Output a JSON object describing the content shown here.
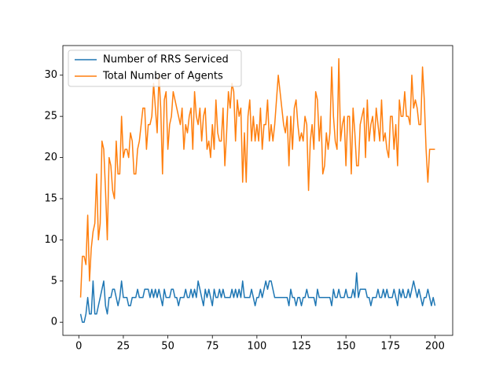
{
  "chart_data": {
    "type": "line",
    "x": [
      1,
      2,
      3,
      4,
      5,
      6,
      7,
      8,
      9,
      10,
      11,
      12,
      13,
      14,
      15,
      16,
      17,
      18,
      19,
      20,
      21,
      22,
      23,
      24,
      25,
      26,
      27,
      28,
      29,
      30,
      31,
      32,
      33,
      34,
      35,
      36,
      37,
      38,
      39,
      40,
      41,
      42,
      43,
      44,
      45,
      46,
      47,
      48,
      49,
      50,
      51,
      52,
      53,
      54,
      55,
      56,
      57,
      58,
      59,
      60,
      61,
      62,
      63,
      64,
      65,
      66,
      67,
      68,
      69,
      70,
      71,
      72,
      73,
      74,
      75,
      76,
      77,
      78,
      79,
      80,
      81,
      82,
      83,
      84,
      85,
      86,
      87,
      88,
      89,
      90,
      91,
      92,
      93,
      94,
      95,
      96,
      97,
      98,
      99,
      100,
      101,
      102,
      103,
      104,
      105,
      106,
      107,
      108,
      109,
      110,
      111,
      112,
      113,
      114,
      115,
      116,
      117,
      118,
      119,
      120,
      121,
      122,
      123,
      124,
      125,
      126,
      127,
      128,
      129,
      130,
      131,
      132,
      133,
      134,
      135,
      136,
      137,
      138,
      139,
      140,
      141,
      142,
      143,
      144,
      145,
      146,
      147,
      148,
      149,
      150,
      151,
      152,
      153,
      154,
      155,
      156,
      157,
      158,
      159,
      160,
      161,
      162,
      163,
      164,
      165,
      166,
      167,
      168,
      169,
      170,
      171,
      172,
      173,
      174,
      175,
      176,
      177,
      178,
      179,
      180,
      181,
      182,
      183,
      184,
      185,
      186,
      187,
      188,
      189,
      190,
      191,
      192,
      193,
      194,
      195,
      196,
      197,
      198,
      199,
      200
    ],
    "series": [
      {
        "name": "Number of RRS Serviced",
        "color": "#1f77b4",
        "values": [
          1,
          0,
          0,
          1,
          3,
          1,
          1,
          5,
          1,
          1,
          2,
          3,
          4,
          5,
          2,
          1,
          3,
          3,
          4,
          4,
          3,
          2,
          3,
          5,
          3,
          3,
          3,
          2,
          2,
          3,
          3,
          3,
          4,
          3,
          3,
          3,
          4,
          4,
          4,
          3,
          4,
          3,
          4,
          3,
          4,
          3,
          2,
          4,
          3,
          3,
          3,
          4,
          4,
          3,
          3,
          2,
          3,
          3,
          3,
          4,
          3,
          3,
          4,
          3,
          4,
          3,
          5,
          4,
          3,
          2,
          4,
          3,
          4,
          3,
          2,
          4,
          3,
          3,
          4,
          3,
          4,
          3,
          3,
          3,
          3,
          4,
          3,
          4,
          3,
          4,
          3,
          5,
          3,
          3,
          3,
          3,
          4,
          3,
          2,
          3,
          3,
          4,
          3,
          4,
          5,
          4,
          5,
          5,
          4,
          3,
          3,
          3,
          3,
          3,
          3,
          3,
          3,
          2,
          4,
          3,
          3,
          2,
          3,
          3,
          2,
          3,
          3,
          4,
          3,
          3,
          3,
          3,
          2,
          4,
          3,
          3,
          3,
          3,
          3,
          3,
          3,
          2,
          4,
          3,
          3,
          4,
          3,
          3,
          3,
          4,
          3,
          3,
          3,
          4,
          3,
          6,
          3,
          4,
          4,
          4,
          4,
          3,
          3,
          2,
          3,
          3,
          3,
          4,
          3,
          3,
          4,
          3,
          4,
          3,
          3,
          3,
          4,
          3,
          2,
          4,
          3,
          4,
          3,
          3,
          4,
          3,
          4,
          5,
          4,
          3,
          4,
          3,
          2,
          3,
          3,
          4,
          3,
          2,
          3,
          2
        ]
      },
      {
        "name": "Total Number of Agents",
        "color": "#ff7f0e",
        "values": [
          3,
          8,
          8,
          7,
          13,
          5,
          9,
          11,
          12,
          18,
          10,
          12,
          22,
          21,
          16,
          10,
          20,
          19,
          16,
          15,
          22,
          18,
          18,
          25,
          20,
          21,
          21,
          20,
          23,
          22,
          18,
          18,
          21,
          22,
          24,
          26,
          26,
          21,
          24,
          24,
          25,
          29,
          26,
          23,
          30,
          26,
          18,
          27,
          28,
          21,
          24,
          25,
          28,
          27,
          26,
          25,
          24,
          26,
          21,
          24,
          23,
          25,
          26,
          21,
          28,
          25,
          24,
          26,
          22,
          25,
          26,
          21,
          22,
          20,
          24,
          21,
          27,
          23,
          22,
          22,
          26,
          19,
          23,
          28,
          26,
          29,
          28,
          22,
          27,
          25,
          26,
          17,
          23,
          17,
          25,
          27,
          22,
          25,
          22,
          24,
          22,
          26,
          21,
          24,
          24,
          27,
          22,
          24,
          22,
          24,
          27,
          30,
          28,
          26,
          24,
          23,
          25,
          19,
          25,
          21,
          26,
          27,
          24,
          22,
          23,
          22,
          25,
          24,
          16,
          22,
          24,
          21,
          28,
          27,
          22,
          25,
          18,
          19,
          23,
          21,
          23,
          31,
          25,
          22,
          21,
          32,
          22,
          24,
          25,
          19,
          25,
          25,
          18,
          26,
          23,
          19,
          19,
          24,
          25,
          26,
          20,
          27,
          22,
          24,
          25,
          22,
          26,
          24,
          22,
          27,
          22,
          23,
          21,
          20,
          25,
          25,
          21,
          24,
          19,
          27,
          25,
          25,
          28,
          25,
          25,
          24,
          30,
          26,
          27,
          26,
          24,
          24,
          31,
          27,
          21,
          17,
          21,
          21,
          21,
          21
        ]
      }
    ],
    "xlim": [
      -8.95,
      209.95
    ],
    "xticks": [
      0,
      25,
      50,
      75,
      100,
      125,
      150,
      175,
      200
    ],
    "ylim": [
      -1.6,
      33.6
    ],
    "yticks": [
      0,
      5,
      10,
      15,
      20,
      25,
      30
    ],
    "legend": "upper left",
    "grid": false
  }
}
